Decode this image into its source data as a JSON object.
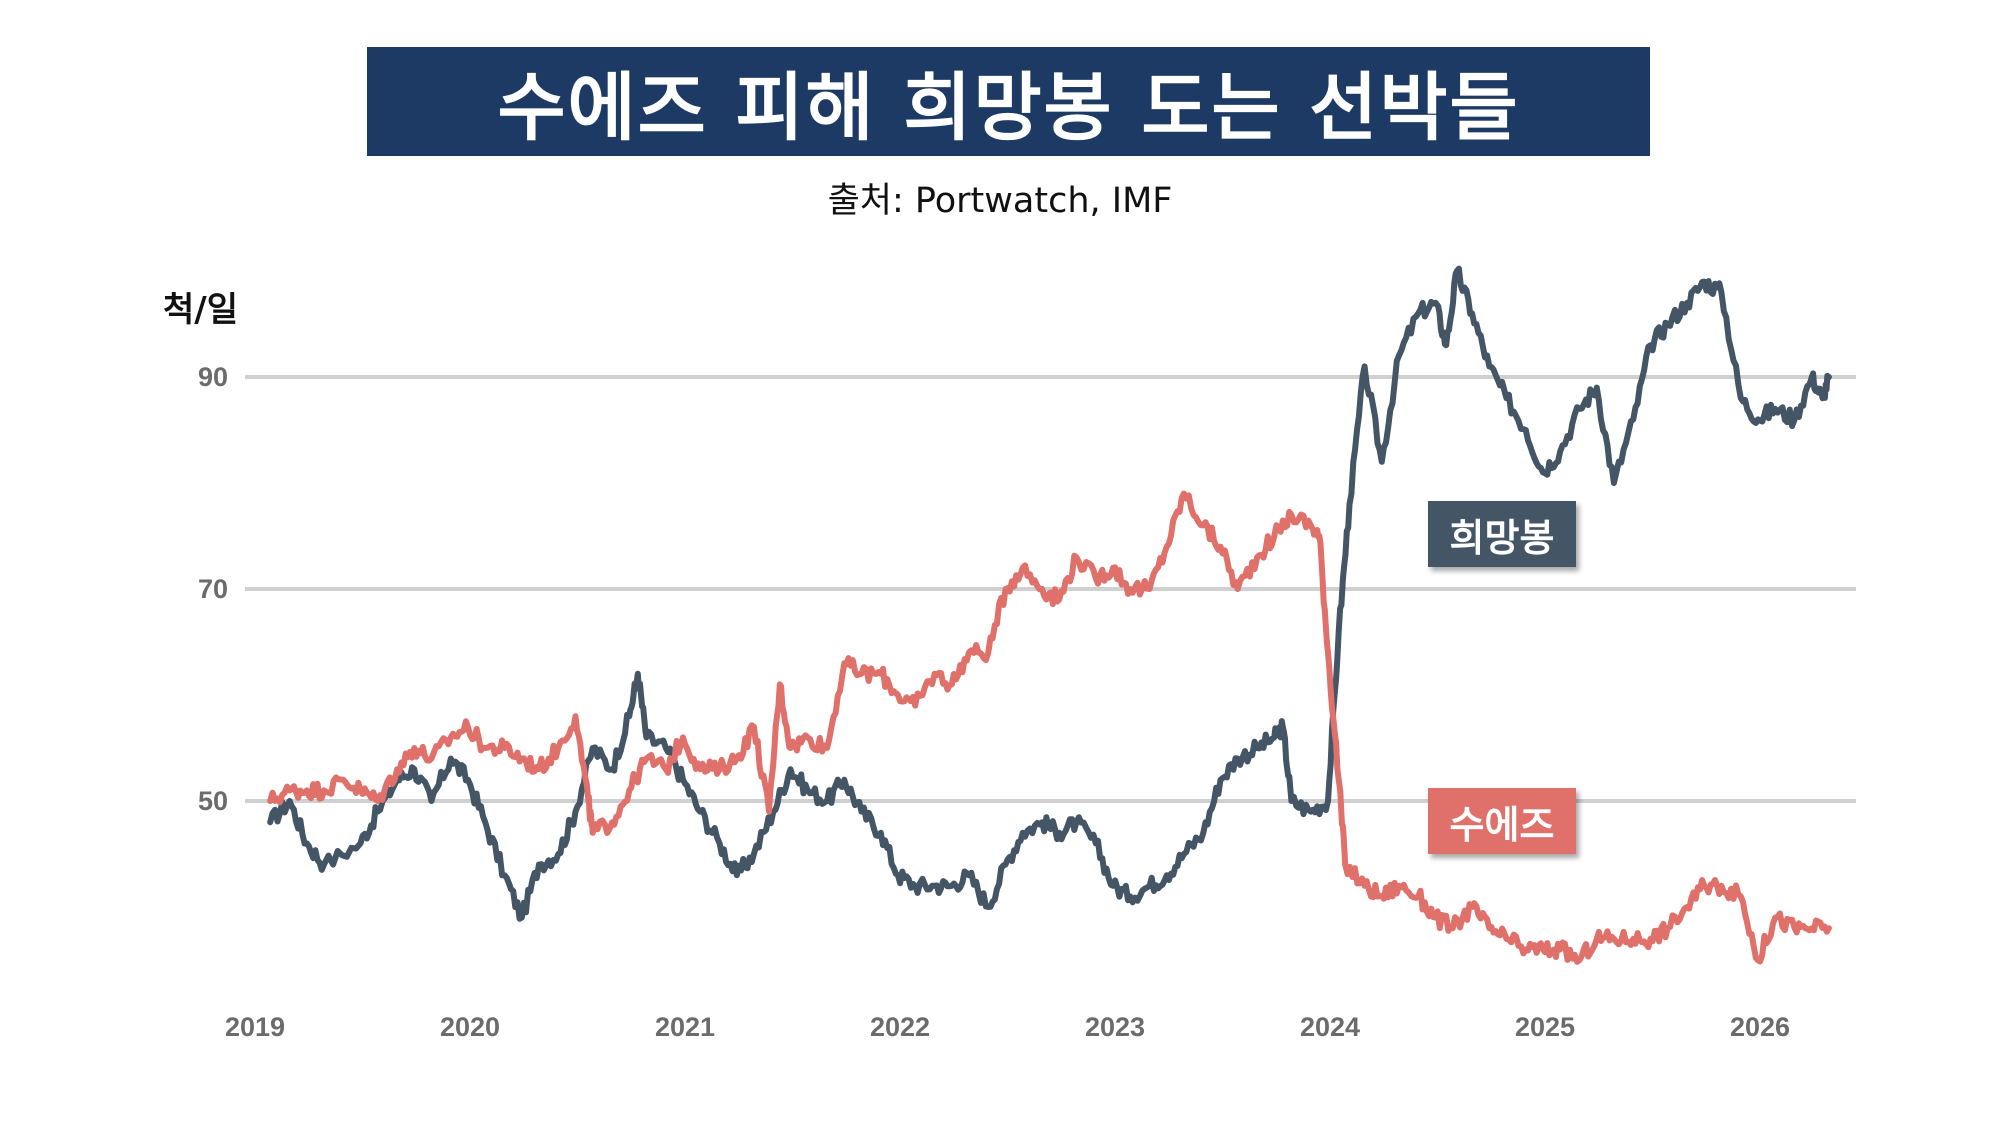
{
  "header": {
    "title": "수에즈 피해 희망봉 도는 선박들",
    "source": "출처: Portwatch, IMF"
  },
  "chart_data": {
    "type": "line",
    "ylabel": "척/일",
    "ylim": [
      23,
      105
    ],
    "xlim": [
      2019.0,
      2026.6
    ],
    "y_ticks": [
      50,
      70,
      90
    ],
    "x_ticks": [
      "2019",
      "2020",
      "2021",
      "2022",
      "2023",
      "2024",
      "2025",
      "2026"
    ],
    "grid": "horizontal",
    "series": [
      {
        "name": "희망봉",
        "color": "#445566",
        "points": [
          [
            2019.08,
            48
          ],
          [
            2019.17,
            50
          ],
          [
            2019.25,
            46
          ],
          [
            2019.33,
            44
          ],
          [
            2019.5,
            46
          ],
          [
            2019.58,
            49
          ],
          [
            2019.67,
            52
          ],
          [
            2019.75,
            53
          ],
          [
            2019.83,
            50
          ],
          [
            2019.92,
            54
          ],
          [
            2020.0,
            52
          ],
          [
            2020.08,
            48
          ],
          [
            2020.17,
            43
          ],
          [
            2020.25,
            39
          ],
          [
            2020.33,
            44
          ],
          [
            2020.42,
            45
          ],
          [
            2020.5,
            49
          ],
          [
            2020.58,
            55
          ],
          [
            2020.67,
            53
          ],
          [
            2020.75,
            58
          ],
          [
            2020.79,
            62
          ],
          [
            2020.83,
            56
          ],
          [
            2020.92,
            55
          ],
          [
            2021.0,
            52
          ],
          [
            2021.08,
            49
          ],
          [
            2021.17,
            46
          ],
          [
            2021.25,
            43
          ],
          [
            2021.33,
            45
          ],
          [
            2021.42,
            49
          ],
          [
            2021.5,
            53
          ],
          [
            2021.58,
            51
          ],
          [
            2021.67,
            50
          ],
          [
            2021.75,
            52
          ],
          [
            2021.83,
            49
          ],
          [
            2021.92,
            47
          ],
          [
            2022.0,
            43
          ],
          [
            2022.08,
            42
          ],
          [
            2022.17,
            42
          ],
          [
            2022.25,
            42
          ],
          [
            2022.33,
            43
          ],
          [
            2022.42,
            40
          ],
          [
            2022.5,
            44
          ],
          [
            2022.58,
            47
          ],
          [
            2022.67,
            48
          ],
          [
            2022.75,
            47
          ],
          [
            2022.83,
            48
          ],
          [
            2022.92,
            46
          ],
          [
            2023.0,
            42
          ],
          [
            2023.08,
            41
          ],
          [
            2023.17,
            42
          ],
          [
            2023.25,
            43
          ],
          [
            2023.33,
            45
          ],
          [
            2023.42,
            47
          ],
          [
            2023.5,
            52
          ],
          [
            2023.58,
            54
          ],
          [
            2023.67,
            55
          ],
          [
            2023.75,
            56
          ],
          [
            2023.79,
            57
          ],
          [
            2023.83,
            50
          ],
          [
            2023.92,
            49
          ],
          [
            2024.0,
            50
          ],
          [
            2024.05,
            66
          ],
          [
            2024.1,
            78
          ],
          [
            2024.17,
            91
          ],
          [
            2024.25,
            82
          ],
          [
            2024.33,
            92
          ],
          [
            2024.42,
            96
          ],
          [
            2024.5,
            97
          ],
          [
            2024.55,
            93
          ],
          [
            2024.6,
            100
          ],
          [
            2024.67,
            96
          ],
          [
            2024.75,
            91
          ],
          [
            2024.83,
            88
          ],
          [
            2024.92,
            85
          ],
          [
            2025.0,
            81
          ],
          [
            2025.08,
            83
          ],
          [
            2025.17,
            87
          ],
          [
            2025.25,
            89
          ],
          [
            2025.33,
            80
          ],
          [
            2025.42,
            86
          ],
          [
            2025.5,
            93
          ],
          [
            2025.58,
            95
          ],
          [
            2025.67,
            97
          ],
          [
            2025.75,
            99
          ],
          [
            2025.83,
            98
          ],
          [
            2025.92,
            88
          ],
          [
            2026.0,
            86
          ],
          [
            2026.08,
            87
          ],
          [
            2026.17,
            86
          ],
          [
            2026.25,
            90
          ],
          [
            2026.3,
            88
          ],
          [
            2026.33,
            90
          ]
        ]
      },
      {
        "name": "수에즈",
        "color": "#e0706a",
        "points": [
          [
            2019.08,
            50
          ],
          [
            2019.17,
            51
          ],
          [
            2019.25,
            51
          ],
          [
            2019.33,
            51
          ],
          [
            2019.42,
            52
          ],
          [
            2019.5,
            51
          ],
          [
            2019.58,
            50
          ],
          [
            2019.67,
            53
          ],
          [
            2019.75,
            55
          ],
          [
            2019.83,
            54
          ],
          [
            2019.92,
            56
          ],
          [
            2020.0,
            57
          ],
          [
            2020.08,
            55
          ],
          [
            2020.17,
            55
          ],
          [
            2020.25,
            54
          ],
          [
            2020.33,
            53
          ],
          [
            2020.42,
            55
          ],
          [
            2020.5,
            58
          ],
          [
            2020.56,
            50
          ],
          [
            2020.58,
            47
          ],
          [
            2020.67,
            48
          ],
          [
            2020.75,
            51
          ],
          [
            2020.83,
            54
          ],
          [
            2020.92,
            53
          ],
          [
            2021.0,
            56
          ],
          [
            2021.08,
            53
          ],
          [
            2021.17,
            53
          ],
          [
            2021.25,
            54
          ],
          [
            2021.33,
            57
          ],
          [
            2021.4,
            49
          ],
          [
            2021.45,
            61
          ],
          [
            2021.5,
            55
          ],
          [
            2021.58,
            56
          ],
          [
            2021.67,
            55
          ],
          [
            2021.75,
            63
          ],
          [
            2021.83,
            62
          ],
          [
            2021.92,
            62
          ],
          [
            2022.0,
            60
          ],
          [
            2022.08,
            59
          ],
          [
            2022.17,
            62
          ],
          [
            2022.25,
            61
          ],
          [
            2022.33,
            64
          ],
          [
            2022.42,
            64
          ],
          [
            2022.5,
            70
          ],
          [
            2022.58,
            72
          ],
          [
            2022.67,
            70
          ],
          [
            2022.75,
            69
          ],
          [
            2022.83,
            73
          ],
          [
            2022.92,
            71
          ],
          [
            2023.0,
            72
          ],
          [
            2023.08,
            70
          ],
          [
            2023.17,
            70
          ],
          [
            2023.25,
            74
          ],
          [
            2023.33,
            79
          ],
          [
            2023.42,
            76
          ],
          [
            2023.5,
            74
          ],
          [
            2023.58,
            70
          ],
          [
            2023.67,
            73
          ],
          [
            2023.75,
            75
          ],
          [
            2023.83,
            77
          ],
          [
            2023.92,
            76
          ],
          [
            2023.96,
            75
          ],
          [
            2024.0,
            64
          ],
          [
            2024.05,
            52
          ],
          [
            2024.08,
            44
          ],
          [
            2024.17,
            42
          ],
          [
            2024.25,
            41
          ],
          [
            2024.33,
            42
          ],
          [
            2024.42,
            41
          ],
          [
            2024.5,
            39
          ],
          [
            2024.58,
            38
          ],
          [
            2024.67,
            40
          ],
          [
            2024.75,
            38
          ],
          [
            2024.83,
            37
          ],
          [
            2024.92,
            36
          ],
          [
            2025.0,
            36
          ],
          [
            2025.08,
            36
          ],
          [
            2025.17,
            35
          ],
          [
            2025.25,
            37
          ],
          [
            2025.33,
            37
          ],
          [
            2025.42,
            37
          ],
          [
            2025.5,
            37
          ],
          [
            2025.58,
            38
          ],
          [
            2025.67,
            40
          ],
          [
            2025.75,
            42
          ],
          [
            2025.83,
            42
          ],
          [
            2025.92,
            41
          ],
          [
            2026.0,
            35
          ],
          [
            2026.08,
            39
          ],
          [
            2026.17,
            38
          ],
          [
            2026.25,
            38
          ],
          [
            2026.33,
            38
          ]
        ]
      }
    ],
    "legend": [
      {
        "label": "희망봉",
        "color": "#445566",
        "placement": "right, above lines"
      },
      {
        "label": "수에즈",
        "color": "#e0706a",
        "placement": "right, between lines"
      }
    ]
  }
}
